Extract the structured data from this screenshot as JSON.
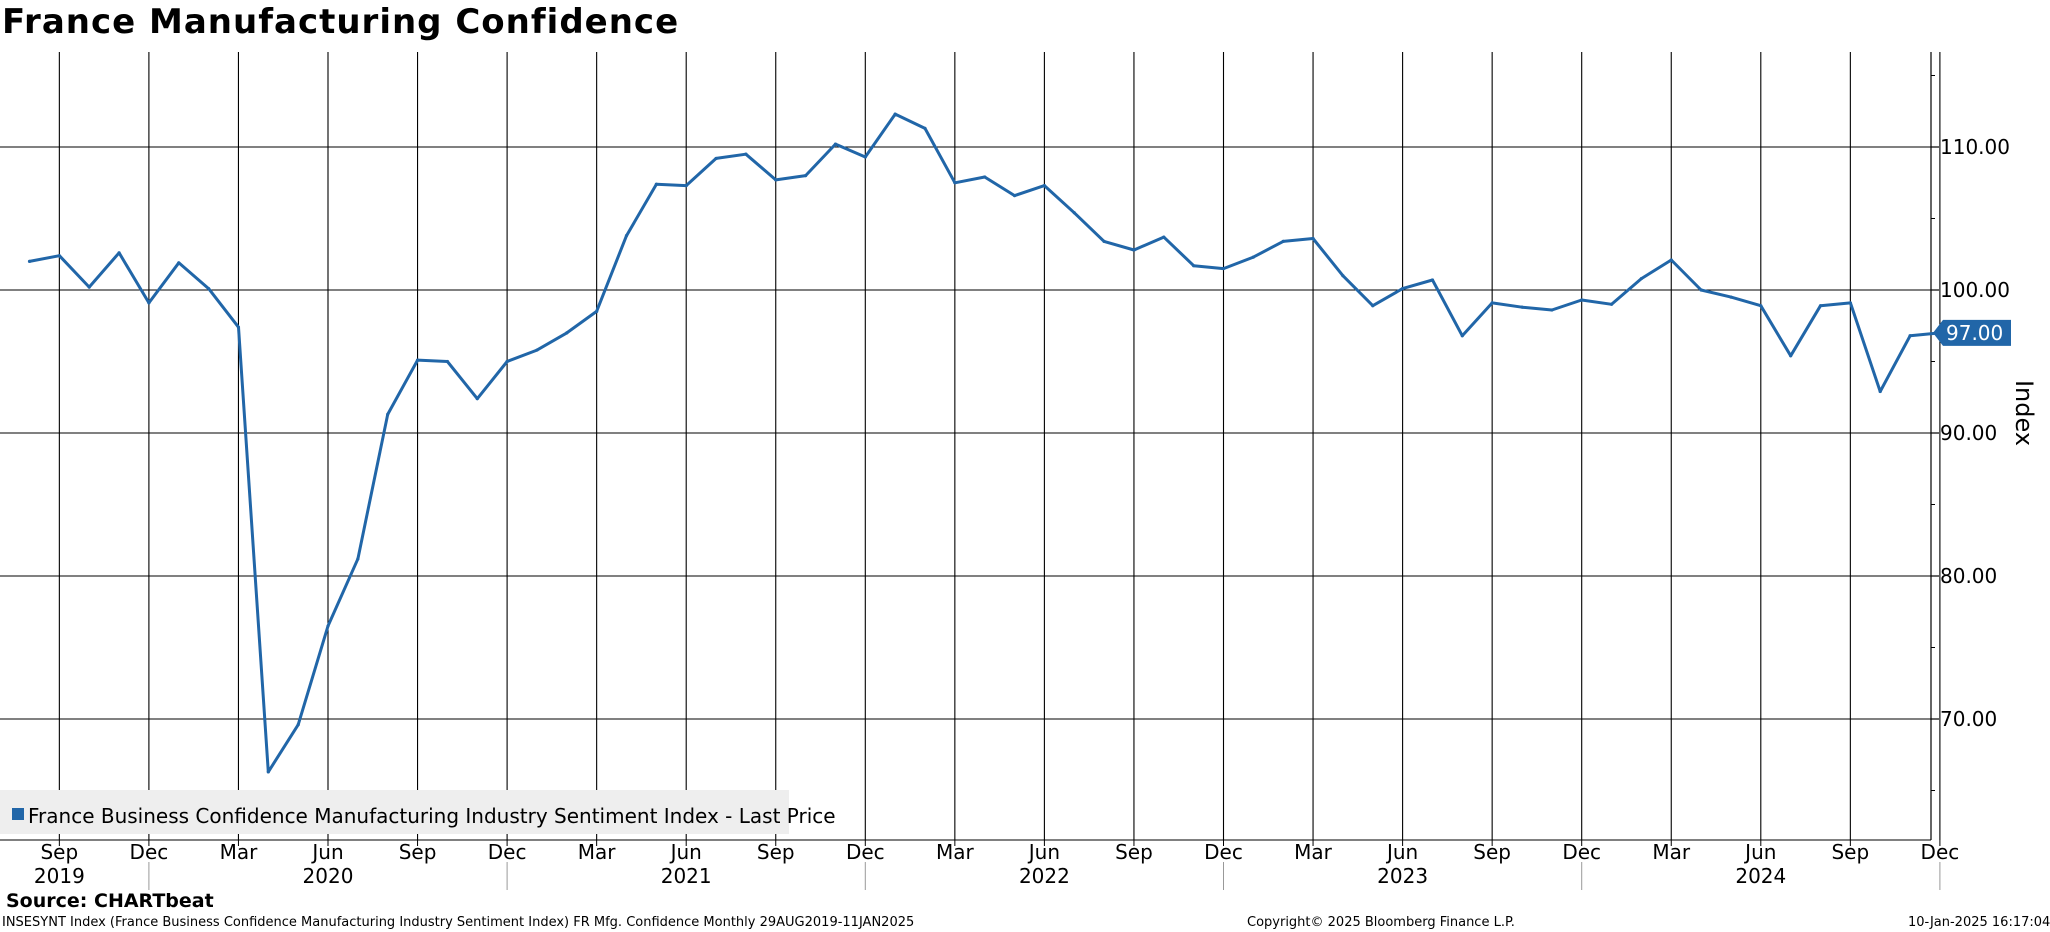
{
  "title": "France Manufacturing Confidence",
  "source": "Source: CHARTbeat",
  "footer": {
    "info": "INSESYNT Index (France Business Confidence Manufacturing Industry Sentiment Index) FR Mfg. Confidence  Monthly 29AUG2019-11JAN2025",
    "copyright": "Copyright© 2025 Bloomberg Finance L.P.",
    "timestamp": "10-Jan-2025 16:17:04"
  },
  "colors": {
    "series": "#2166a8",
    "grid": "#000000",
    "legend_bg": "#eeeeee"
  },
  "chart_data": {
    "type": "line",
    "title": "France Manufacturing Confidence",
    "ylabel": "Index",
    "ylim": [
      61.5,
      117
    ],
    "yticks": [
      70,
      80,
      90,
      100,
      110
    ],
    "ytick_labels": [
      "70.00",
      "80.00",
      "90.00",
      "100.00",
      "110.00"
    ],
    "grid": true,
    "legend_position": "bottom-left",
    "last_value_label": "97.00",
    "x_month_ticks": [
      "Sep",
      "Dec",
      "Mar",
      "Jun",
      "Sep",
      "Dec",
      "Mar",
      "Jun",
      "Sep",
      "Dec",
      "Mar",
      "Jun",
      "Sep",
      "Dec",
      "Mar",
      "Jun",
      "Sep",
      "Dec",
      "Mar",
      "Jun",
      "Sep",
      "Dec"
    ],
    "x_year_labels": [
      "2019",
      "2020",
      "2021",
      "2022",
      "2023",
      "2024"
    ],
    "series": [
      {
        "name": "France Business Confidence Manufacturing Industry Sentiment Index - Last Price",
        "x": [
          "2019-08",
          "2019-09",
          "2019-10",
          "2019-11",
          "2019-12",
          "2020-01",
          "2020-02",
          "2020-03",
          "2020-04",
          "2020-05",
          "2020-06",
          "2020-07",
          "2020-08",
          "2020-09",
          "2020-10",
          "2020-11",
          "2020-12",
          "2021-01",
          "2021-02",
          "2021-03",
          "2021-04",
          "2021-05",
          "2021-06",
          "2021-07",
          "2021-08",
          "2021-09",
          "2021-10",
          "2021-11",
          "2021-12",
          "2022-01",
          "2022-02",
          "2022-03",
          "2022-04",
          "2022-05",
          "2022-06",
          "2022-07",
          "2022-08",
          "2022-09",
          "2022-10",
          "2022-11",
          "2022-12",
          "2023-01",
          "2023-02",
          "2023-03",
          "2023-04",
          "2023-05",
          "2023-06",
          "2023-07",
          "2023-08",
          "2023-09",
          "2023-10",
          "2023-11",
          "2023-12",
          "2024-01",
          "2024-02",
          "2024-03",
          "2024-04",
          "2024-05",
          "2024-06",
          "2024-07",
          "2024-08",
          "2024-09",
          "2024-10",
          "2024-11",
          "2024-12"
        ],
        "values": [
          102.0,
          102.4,
          100.2,
          102.6,
          99.1,
          101.9,
          100.1,
          97.4,
          66.3,
          69.6,
          76.5,
          81.2,
          91.3,
          95.1,
          95.0,
          92.4,
          95.0,
          95.8,
          97.0,
          98.5,
          103.8,
          107.4,
          107.3,
          109.2,
          109.5,
          107.7,
          108.0,
          110.2,
          109.3,
          112.3,
          111.3,
          107.5,
          107.9,
          106.6,
          107.3,
          105.4,
          103.4,
          102.8,
          103.7,
          101.7,
          101.5,
          102.3,
          103.4,
          103.6,
          101.0,
          98.9,
          100.1,
          100.7,
          96.8,
          99.1,
          98.8,
          98.6,
          99.3,
          99.0,
          100.8,
          102.1,
          100.0,
          99.5,
          98.9,
          95.4,
          98.9,
          99.1,
          92.9,
          96.8,
          97.0
        ]
      }
    ]
  }
}
